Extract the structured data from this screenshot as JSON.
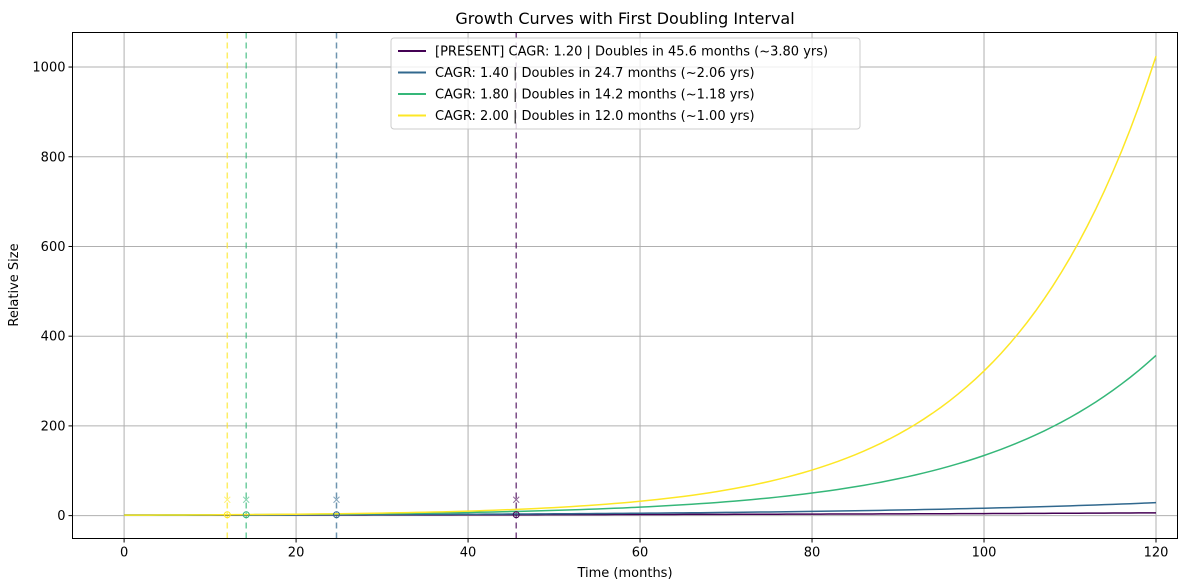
{
  "chart_data": {
    "type": "line",
    "title": "Growth Curves with First Doubling Interval",
    "xlabel": "Time (months)",
    "ylabel": "Relative Size",
    "xlim": [
      -6,
      122.5
    ],
    "ylim": [
      -51,
      1077
    ],
    "xticks": [
      0,
      20,
      40,
      60,
      80,
      100,
      120
    ],
    "yticks": [
      0,
      200,
      400,
      600,
      800,
      1000
    ],
    "xtick_labels": [
      "0",
      "20",
      "40",
      "60",
      "80",
      "100",
      "120"
    ],
    "ytick_labels": [
      "0",
      "200",
      "400",
      "600",
      "800",
      "1000"
    ],
    "grid": true,
    "legend_position": "upper-center",
    "x": [
      0,
      10,
      20,
      30,
      40,
      50,
      60,
      70,
      80,
      90,
      100,
      110,
      120
    ],
    "series": [
      {
        "name": "[PRESENT] CAGR: 1.20 | Doubles in 45.6 months (~3.80 yrs)",
        "label": "[PRESENT] CAGR: 1.20 | Doubles in 45.6 months (~3.80 yrs)",
        "cagr": 1.2,
        "color": "#440154",
        "doubling_month": 45.6,
        "values": [
          1,
          1.16,
          1.35,
          1.58,
          1.84,
          2.14,
          2.49,
          2.9,
          3.38,
          3.93,
          4.57,
          5.32,
          6.19
        ]
      },
      {
        "name": "CAGR: 1.40 | Doubles in 24.7 months (~2.06 yrs)",
        "label": "CAGR: 1.40 | Doubles in 24.7 months (~2.06 yrs)",
        "cagr": 1.4,
        "color": "#31688e",
        "doubling_month": 24.7,
        "values": [
          1,
          1.32,
          1.75,
          2.32,
          3.07,
          4.06,
          5.38,
          7.12,
          9.43,
          12.48,
          16.53,
          21.88,
          28.93
        ]
      },
      {
        "name": "CAGR: 1.80 | Doubles in 14.2 months (~1.18 yrs)",
        "label": "CAGR: 1.80 | Doubles in 14.2 months (~1.18 yrs)",
        "cagr": 1.8,
        "color": "#35b779",
        "doubling_month": 14.2,
        "values": [
          1,
          1.63,
          2.66,
          4.33,
          7.05,
          11.48,
          18.9,
          30.7,
          50,
          81.3,
          132.3,
          215.3,
          357
        ]
      },
      {
        "name": "CAGR: 2.00 | Doubles in 12.0 months (~1.00 yrs)",
        "label": "CAGR: 2.00 | Doubles in 12.0 months (~1.00 yrs)",
        "cagr": 2.0,
        "color": "#fde725",
        "doubling_month": 12.0,
        "values": [
          1,
          1.78,
          3.17,
          5.66,
          10.08,
          17.96,
          32,
          57,
          101.6,
          181,
          322.5,
          574.7,
          1024
        ]
      }
    ]
  }
}
